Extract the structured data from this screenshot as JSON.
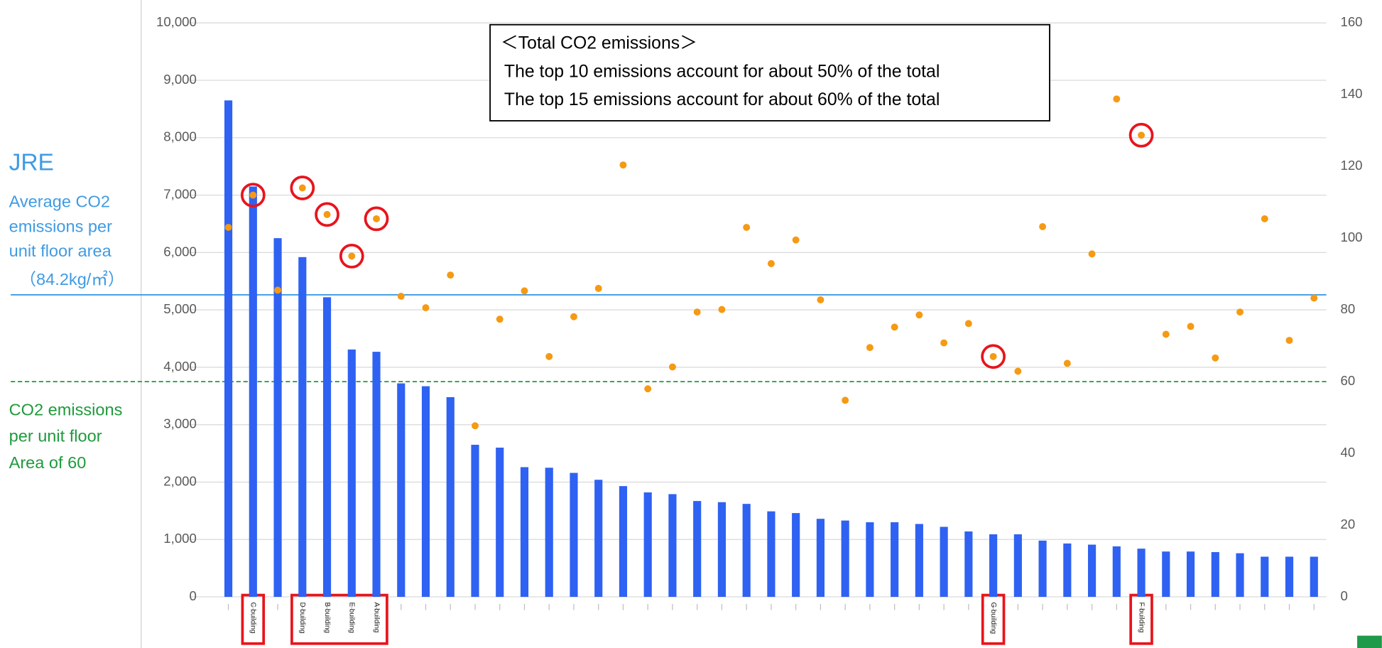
{
  "chart_data": {
    "type": "bar",
    "categories": [
      null,
      "C building",
      null,
      "D building",
      "B building",
      "E building",
      "A building",
      null,
      null,
      null,
      null,
      null,
      null,
      null,
      null,
      null,
      null,
      null,
      null,
      null,
      null,
      null,
      null,
      null,
      null,
      null,
      null,
      null,
      null,
      null,
      null,
      "G building",
      null,
      null,
      null,
      null,
      null,
      "F building",
      null,
      null,
      null,
      null,
      null,
      null,
      null
    ],
    "series": [
      {
        "type": "bar",
        "color": "#2f62f2",
        "values": [
          8650,
          7150,
          6250,
          5920,
          5220,
          4310,
          4270,
          3720,
          3670,
          3480,
          2650,
          2600,
          2260,
          2250,
          2160,
          2040,
          1930,
          1820,
          1790,
          1670,
          1650,
          1620,
          1490,
          1460,
          1360,
          1330,
          1300,
          1300,
          1270,
          1220,
          1140,
          1090,
          1090,
          980,
          930,
          910,
          880,
          840,
          790,
          790,
          780,
          760,
          700,
          700,
          700
        ]
      },
      {
        "type": "scatter",
        "axis": "y2",
        "color": "#f59a12",
        "values": [
          103,
          112,
          85.5,
          114,
          106.6,
          95,
          105.4,
          83.8,
          80.6,
          89.7,
          47.7,
          77.4,
          85.3,
          67,
          78.1,
          86,
          120.4,
          58,
          64.1,
          79.4,
          80.1,
          103,
          92.9,
          99.5,
          82.8,
          54.8,
          69.5,
          75.2,
          78.6,
          70.8,
          76.2,
          67,
          62.9,
          103.2,
          65.1,
          95.6,
          138.8,
          128.7,
          73.2,
          75.4,
          66.6,
          79.4,
          105.4,
          71.5,
          83.3
        ]
      }
    ],
    "highlight_color": "#e8141c",
    "ylim": [
      0,
      10000
    ],
    "yticks": [
      {
        "value": 0,
        "label": "0"
      },
      {
        "value": 1000,
        "label": "1,000"
      },
      {
        "value": 2000,
        "label": "2,000"
      },
      {
        "value": 3000,
        "label": "3,000"
      },
      {
        "value": 4000,
        "label": "4,000"
      },
      {
        "value": 5000,
        "label": "5,000"
      },
      {
        "value": 6000,
        "label": "6,000"
      },
      {
        "value": 7000,
        "label": "7,000"
      },
      {
        "value": 8000,
        "label": "8,000"
      },
      {
        "value": 9000,
        "label": "9,000"
      },
      {
        "value": 10000,
        "label": "10,000"
      }
    ],
    "y2lim": [
      0,
      160
    ],
    "y2ticks": [
      0,
      20,
      40,
      60,
      80,
      100,
      120,
      140,
      160
    ],
    "grid": true,
    "reference_lines": [
      {
        "value": 84.2,
        "axis": "y2",
        "color": "#3f9be3",
        "style": "solid",
        "label": [
          "JRE",
          "Average CO2",
          "emissions per",
          "unit floor area",
          "（84.2kg/㎡）"
        ]
      },
      {
        "value": 60,
        "axis": "y2",
        "color": "#1f9a3c",
        "style": "dashed",
        "label": [
          "CO2 emissions",
          "per unit floor",
          "Area of  60"
        ]
      }
    ],
    "annotation_box": [
      "＜Total CO2 emissions＞",
      "The top 10 emissions account for about 50% of the total",
      "The top 15 emissions account for about 60% of the total"
    ]
  }
}
